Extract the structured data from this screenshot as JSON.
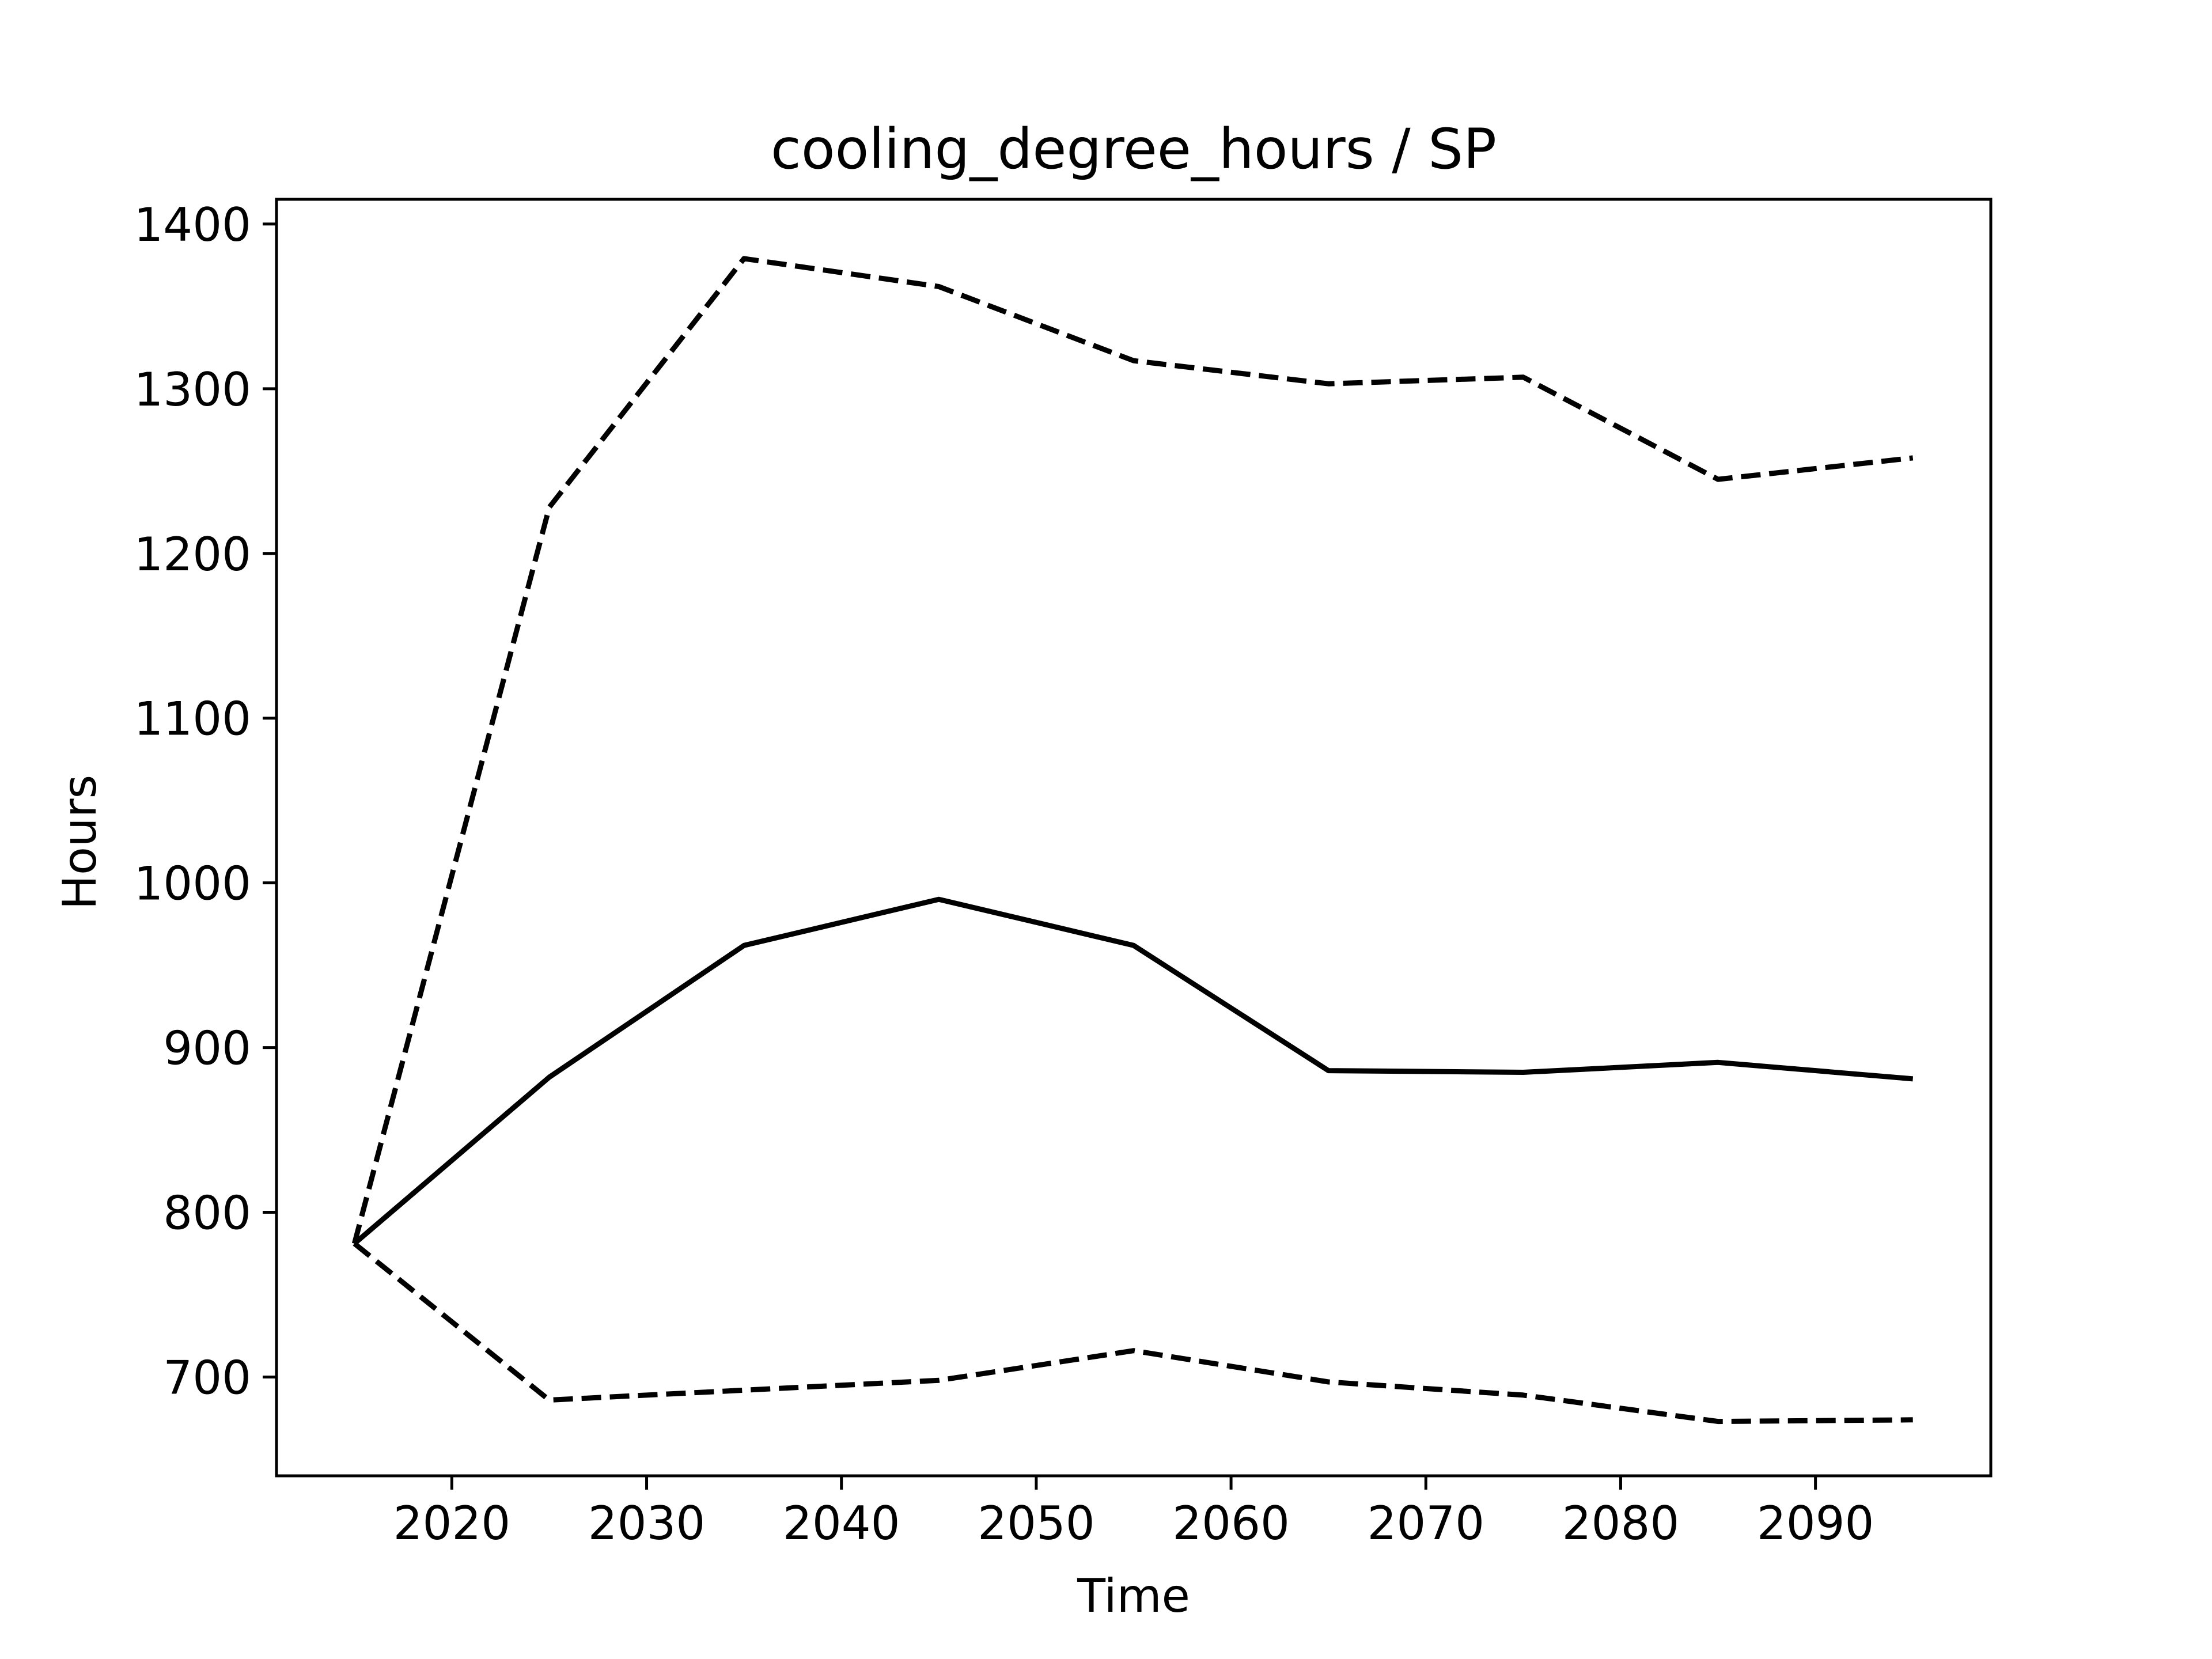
{
  "chart_data": {
    "type": "line",
    "title": "cooling_degree_hours / SP",
    "xlabel": "Time",
    "ylabel": "Hours",
    "xlim": [
      2011,
      2099
    ],
    "ylim": [
      640,
      1415
    ],
    "xticks": [
      2020,
      2030,
      2040,
      2050,
      2060,
      2070,
      2080,
      2090
    ],
    "yticks": [
      700,
      800,
      900,
      1000,
      1100,
      1200,
      1300,
      1400
    ],
    "x": [
      2015,
      2025,
      2035,
      2045,
      2055,
      2065,
      2075,
      2085,
      2095
    ],
    "series": [
      {
        "style": "solid",
        "values": [
          781,
          882,
          962,
          990,
          962,
          886,
          885,
          891,
          881
        ]
      },
      {
        "style": "dashed",
        "values": [
          781,
          1228,
          1379,
          1362,
          1317,
          1303,
          1307,
          1245,
          1258
        ]
      },
      {
        "style": "dashed",
        "values": [
          781,
          686,
          692,
          698,
          716,
          697,
          689,
          673,
          674
        ]
      }
    ],
    "grid": false,
    "colors": {
      "line": "#000000",
      "axes": "#000000",
      "background": "#ffffff"
    }
  }
}
